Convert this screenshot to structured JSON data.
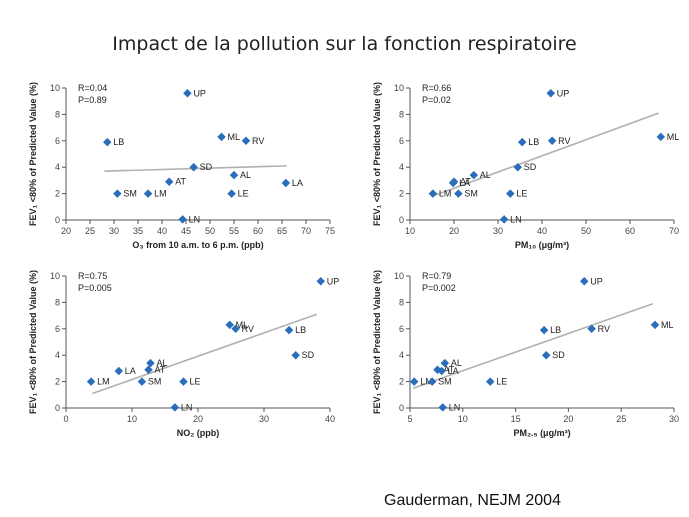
{
  "title": "Impact de la pollution sur la fonction respiratoire",
  "citation": "Gauderman, NEJM 2004",
  "colors": {
    "point": "#2a6ebb",
    "trend": "#b0b0b0",
    "axis": "#555555"
  },
  "chart_data": [
    {
      "type": "scatter",
      "id": "o3",
      "xlabel": "O₃ from 10 a.m. to 6 p.m. (ppb)",
      "ylabel": "FEV₁ <80% of Predicted Value (%)",
      "xlim": [
        20,
        75
      ],
      "ylim": [
        0,
        10
      ],
      "xticks": [
        20,
        25,
        30,
        35,
        40,
        45,
        50,
        55,
        60,
        65,
        70,
        75
      ],
      "yticks": [
        0,
        2,
        4,
        6,
        8,
        10
      ],
      "stats": [
        "R=0.04",
        "P=0.89"
      ],
      "trend": {
        "x": [
          28,
          66
        ],
        "y": [
          3.7,
          4.1
        ]
      },
      "points": [
        {
          "label": "UP",
          "x": 45.3,
          "y": 9.6
        },
        {
          "label": "ML",
          "x": 52.4,
          "y": 6.3
        },
        {
          "label": "RV",
          "x": 57.5,
          "y": 6.0
        },
        {
          "label": "LB",
          "x": 28.6,
          "y": 5.9
        },
        {
          "label": "SD",
          "x": 46.6,
          "y": 4.0
        },
        {
          "label": "AL",
          "x": 55.0,
          "y": 3.4
        },
        {
          "label": "AT",
          "x": 41.5,
          "y": 2.9
        },
        {
          "label": "LA",
          "x": 65.8,
          "y": 2.8
        },
        {
          "label": "SM",
          "x": 30.7,
          "y": 2.0
        },
        {
          "label": "LM",
          "x": 37.1,
          "y": 2.0
        },
        {
          "label": "LE",
          "x": 54.5,
          "y": 2.0
        },
        {
          "label": "LN",
          "x": 44.3,
          "y": 0.05
        }
      ]
    },
    {
      "type": "scatter",
      "id": "pm10",
      "xlabel": "PM₁₀ (μg/m³)",
      "ylabel": "FEV₁ <80% of Predicted Value (%)",
      "xlim": [
        10,
        70
      ],
      "ylim": [
        0,
        10
      ],
      "xticks": [
        10,
        20,
        30,
        40,
        50,
        60,
        70
      ],
      "yticks": [
        0,
        2,
        4,
        6,
        8,
        10
      ],
      "stats": [
        "R=0.66",
        "P=0.02"
      ],
      "trend": {
        "x": [
          15,
          66.5
        ],
        "y": [
          1.8,
          8.1
        ]
      },
      "points": [
        {
          "label": "UP",
          "x": 42.0,
          "y": 9.6
        },
        {
          "label": "ML",
          "x": 67.0,
          "y": 6.3
        },
        {
          "label": "LB",
          "x": 35.5,
          "y": 5.9
        },
        {
          "label": "RV",
          "x": 42.3,
          "y": 6.0
        },
        {
          "label": "SD",
          "x": 34.5,
          "y": 4.0
        },
        {
          "label": "AL",
          "x": 24.5,
          "y": 3.4
        },
        {
          "label": "AT",
          "x": 20.0,
          "y": 2.9
        },
        {
          "label": "LA",
          "x": 19.8,
          "y": 2.8
        },
        {
          "label": "LM",
          "x": 15.2,
          "y": 2.0
        },
        {
          "label": "SM",
          "x": 21.0,
          "y": 2.0
        },
        {
          "label": "LE",
          "x": 32.8,
          "y": 2.0
        },
        {
          "label": "LN",
          "x": 31.4,
          "y": 0.05
        }
      ]
    },
    {
      "type": "scatter",
      "id": "no2",
      "xlabel": "NO₂ (ppb)",
      "ylabel": "FEV₁ <80% of Predicted Value (%)",
      "xlim": [
        0,
        40
      ],
      "ylim": [
        0,
        10
      ],
      "xticks": [
        0,
        10,
        20,
        30,
        40
      ],
      "yticks": [
        0,
        2,
        4,
        6,
        8,
        10
      ],
      "stats": [
        "R=0.75",
        "P=0.005"
      ],
      "trend": {
        "x": [
          4,
          38
        ],
        "y": [
          1.1,
          7.1
        ]
      },
      "points": [
        {
          "label": "UP",
          "x": 38.6,
          "y": 9.6
        },
        {
          "label": "ML",
          "x": 24.8,
          "y": 6.3
        },
        {
          "label": "RV",
          "x": 25.7,
          "y": 6.0
        },
        {
          "label": "LB",
          "x": 33.8,
          "y": 5.9
        },
        {
          "label": "SD",
          "x": 34.8,
          "y": 4.0
        },
        {
          "label": "AL",
          "x": 12.8,
          "y": 3.4
        },
        {
          "label": "LA",
          "x": 8.0,
          "y": 2.8
        },
        {
          "label": "AT",
          "x": 12.5,
          "y": 2.9
        },
        {
          "label": "LM",
          "x": 3.8,
          "y": 2.0
        },
        {
          "label": "SM",
          "x": 11.5,
          "y": 2.0
        },
        {
          "label": "LE",
          "x": 17.8,
          "y": 2.0
        },
        {
          "label": "LN",
          "x": 16.5,
          "y": 0.05
        }
      ]
    },
    {
      "type": "scatter",
      "id": "pm25",
      "xlabel": "PM₂.₅ (μg/m³)",
      "ylabel": "FEV₁ <80% of Predicted Value (%)",
      "xlim": [
        5,
        30
      ],
      "ylim": [
        0,
        10
      ],
      "xticks": [
        5,
        10,
        15,
        20,
        25,
        30
      ],
      "yticks": [
        0,
        2,
        4,
        6,
        8,
        10
      ],
      "stats": [
        "R=0.79",
        "P=0.002"
      ],
      "trend": {
        "x": [
          5.3,
          28
        ],
        "y": [
          1.5,
          7.9
        ]
      },
      "points": [
        {
          "label": "UP",
          "x": 21.5,
          "y": 9.6
        },
        {
          "label": "ML",
          "x": 28.2,
          "y": 6.3
        },
        {
          "label": "LB",
          "x": 17.7,
          "y": 5.9
        },
        {
          "label": "RV",
          "x": 22.2,
          "y": 6.0
        },
        {
          "label": "SD",
          "x": 17.9,
          "y": 4.0
        },
        {
          "label": "AL",
          "x": 8.3,
          "y": 3.4
        },
        {
          "label": "AT",
          "x": 7.6,
          "y": 2.9
        },
        {
          "label": "LA",
          "x": 8.0,
          "y": 2.8
        },
        {
          "label": "LM",
          "x": 5.4,
          "y": 2.0
        },
        {
          "label": "SM",
          "x": 7.1,
          "y": 2.0
        },
        {
          "label": "LE",
          "x": 12.6,
          "y": 2.0
        },
        {
          "label": "LN",
          "x": 8.1,
          "y": 0.05
        }
      ]
    }
  ]
}
